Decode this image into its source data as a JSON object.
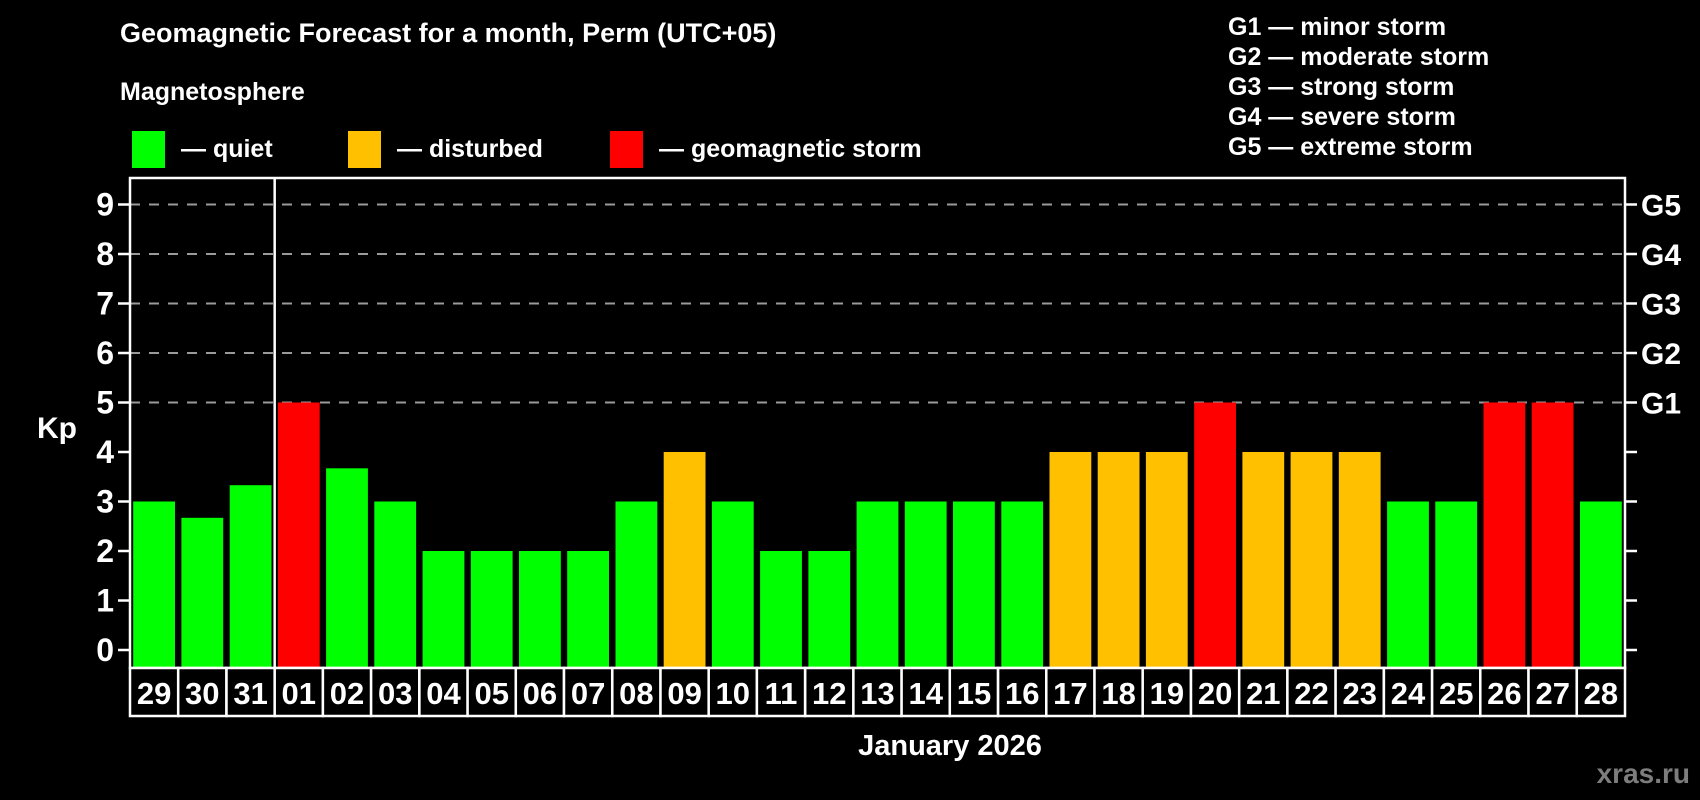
{
  "legend": {
    "heading": "Magnetosphere",
    "quiet": "— quiet",
    "disturbed": "— disturbed",
    "storm": "— geomagnetic storm"
  },
  "g_legend": [
    "G1 — minor storm",
    "G2 — moderate storm",
    "G3 — strong storm",
    "G4 — severe storm",
    "G5 — extreme storm"
  ],
  "footer": {
    "watermark": "xras.ru"
  },
  "colors": {
    "quiet": "#00ff00",
    "disturbed": "#ffc000",
    "storm": "#ff0000",
    "grid": "#9a9a9a",
    "axis": "#ffffff"
  },
  "chart_data": {
    "type": "bar",
    "title": "Geomagnetic Forecast for a month, Perm (UTC+05)",
    "xlabel": "January 2026",
    "ylabel": "Kp",
    "ylim": [
      0,
      9
    ],
    "legend_position": "top",
    "grid": "dashed horizontal lines at Kp 5-9 only",
    "categories": [
      "29",
      "30",
      "31",
      "01",
      "02",
      "03",
      "04",
      "05",
      "06",
      "07",
      "08",
      "09",
      "10",
      "11",
      "12",
      "13",
      "14",
      "15",
      "16",
      "17",
      "18",
      "19",
      "20",
      "21",
      "22",
      "23",
      "24",
      "25",
      "26",
      "27",
      "28"
    ],
    "values": [
      3,
      2.67,
      3.33,
      5,
      3.67,
      3,
      2,
      2,
      2,
      2,
      3,
      4,
      3,
      2,
      2,
      3,
      3,
      3,
      3,
      4,
      4,
      4,
      5,
      4,
      4,
      4,
      3,
      3,
      5,
      5,
      3
    ],
    "states": [
      "quiet",
      "quiet",
      "quiet",
      "storm",
      "quiet",
      "quiet",
      "quiet",
      "quiet",
      "quiet",
      "quiet",
      "quiet",
      "disturbed",
      "quiet",
      "quiet",
      "quiet",
      "quiet",
      "quiet",
      "quiet",
      "quiet",
      "disturbed",
      "disturbed",
      "disturbed",
      "storm",
      "disturbed",
      "disturbed",
      "disturbed",
      "quiet",
      "quiet",
      "storm",
      "storm",
      "quiet"
    ],
    "grid_kp": [
      5,
      6,
      7,
      8,
      9
    ],
    "left_ticks": [
      "0",
      "1",
      "2",
      "3",
      "4",
      "5",
      "6",
      "7",
      "8",
      "9"
    ],
    "right_axis": [
      {
        "kp": 5,
        "label": "G1"
      },
      {
        "kp": 6,
        "label": "G2"
      },
      {
        "kp": 7,
        "label": "G3"
      },
      {
        "kp": 8,
        "label": "G4"
      },
      {
        "kp": 9,
        "label": "G5"
      }
    ],
    "month_separator_slot": 3
  }
}
